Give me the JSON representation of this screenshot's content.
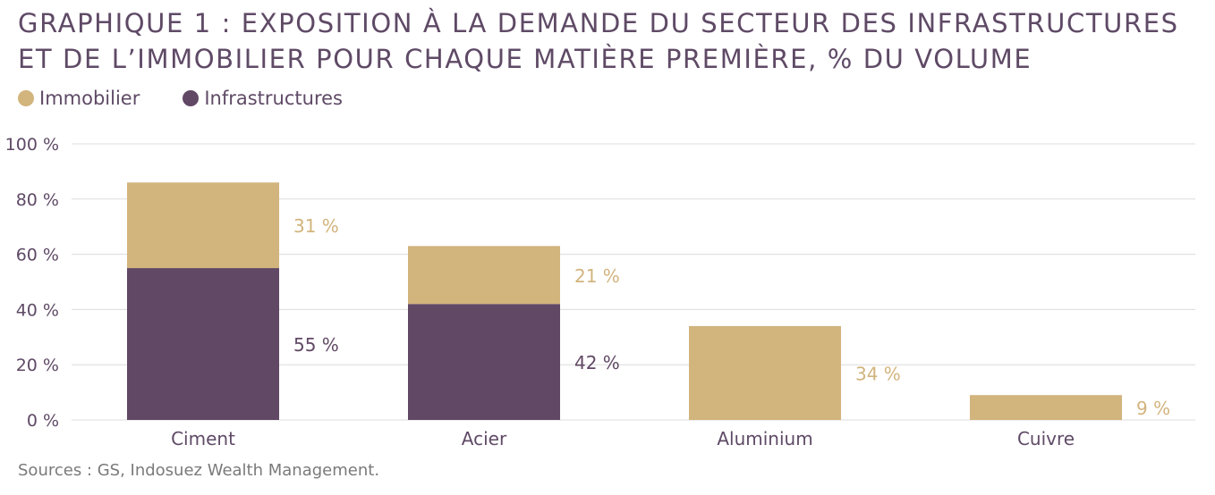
{
  "title_line1": "GRAPHIQUE 1 : EXPOSITION À LA DEMANDE DU SECTEUR DES INFRASTRUCTURES",
  "title_line2": "ET DE L’IMMOBILIER POUR CHAQUE MATIÈRE PREMIÈRE, % DU VOLUME",
  "source": "Sources : GS, Indosuez Wealth Management.",
  "colors": {
    "immobilier": "#d2b47d",
    "infrastructures": "#614865",
    "grid": "#dcdcdc",
    "text": "#5f4a66"
  },
  "chart_data": {
    "type": "bar",
    "stacked": true,
    "categories": [
      "Ciment",
      "Acier",
      "Aluminium",
      "Cuivre"
    ],
    "series": [
      {
        "name": "Infrastructures",
        "values": [
          55,
          42,
          0,
          0
        ],
        "labels": [
          "55 %",
          "42 %",
          "",
          ""
        ]
      },
      {
        "name": "Immobilier",
        "values": [
          31,
          21,
          34,
          9
        ],
        "labels": [
          "31 %",
          "21 %",
          "34 %",
          "9 %"
        ]
      }
    ],
    "legend": [
      "Immobilier",
      "Infrastructures"
    ],
    "legend_position": "top-left",
    "ylim": [
      0,
      100
    ],
    "yticks": [
      "0 %",
      "20 %",
      "40 %",
      "60 %",
      "80 %",
      "100 %"
    ],
    "grid": true
  }
}
